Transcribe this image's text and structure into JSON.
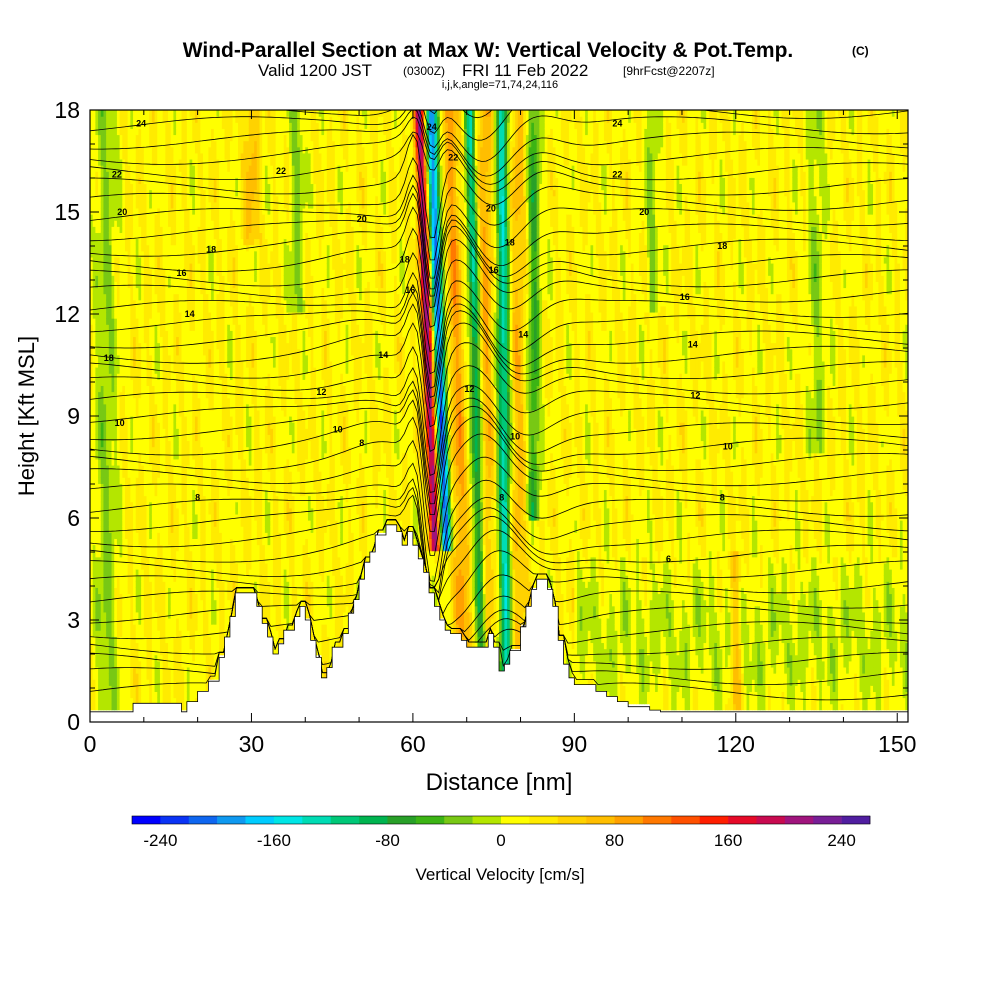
{
  "title": {
    "main": "Wind-Parallel Section at Max W: Vertical Velocity & Pot.Temp.",
    "main_tag": "(C)",
    "valid_a": "Valid 1200 JST",
    "valid_b": "(0300Z)",
    "valid_c": "FRI 11 Feb 2022",
    "valid_d": "[9hrFcst@2207z]",
    "indices": "i,j,k,angle=71,74,24,116"
  },
  "chart_data": {
    "type": "heatmap",
    "xlabel": "Distance [nm]",
    "ylabel": "Height [Kft MSL]",
    "xlim": [
      0,
      152
    ],
    "ylim": [
      0,
      18
    ],
    "xticks": [
      0,
      30,
      60,
      90,
      120,
      150
    ],
    "yticks": [
      0,
      3,
      6,
      9,
      12,
      15,
      18
    ],
    "colorbar": {
      "label": "Vertical Velocity [cm/s]",
      "min": -260,
      "max": 260,
      "step": 20,
      "tick_values": [
        -240,
        -160,
        -80,
        0,
        80,
        160,
        240
      ],
      "tick_labels": [
        "-240",
        "-160",
        "-80",
        "0",
        "80",
        "160",
        "240"
      ],
      "colors": [
        "#0000ff",
        "#0a33f5",
        "#0f66f0",
        "#0f99f0",
        "#00ccff",
        "#00e6e6",
        "#00dcb4",
        "#00c878",
        "#00b450",
        "#28a028",
        "#3cb414",
        "#78c814",
        "#b4e600",
        "#ffff00",
        "#ffeb00",
        "#ffd200",
        "#ffbe00",
        "#ffa000",
        "#ff7800",
        "#ff5000",
        "#ff1e00",
        "#e60a28",
        "#c80a50",
        "#a0147d",
        "#781e96",
        "#501ea0"
      ]
    },
    "terrain_profile": [
      [
        0,
        0.3
      ],
      [
        8,
        0.3
      ],
      [
        8,
        0.55
      ],
      [
        17,
        0.55
      ],
      [
        17,
        0.3
      ],
      [
        18,
        0.3
      ],
      [
        18,
        0.6
      ],
      [
        20,
        0.6
      ],
      [
        20,
        0.9
      ],
      [
        22,
        0.9
      ],
      [
        22,
        1.2
      ],
      [
        24,
        1.2
      ],
      [
        24,
        1.9
      ],
      [
        25,
        1.9
      ],
      [
        25,
        2.5
      ],
      [
        26,
        2.5
      ],
      [
        26,
        3.1
      ],
      [
        27,
        3.1
      ],
      [
        27,
        3.8
      ],
      [
        31,
        3.8
      ],
      [
        31,
        3.4
      ],
      [
        32,
        3.4
      ],
      [
        32,
        2.9
      ],
      [
        33,
        2.9
      ],
      [
        33,
        2.5
      ],
      [
        34,
        2.5
      ],
      [
        34,
        2.0
      ],
      [
        35,
        2.0
      ],
      [
        35,
        2.3
      ],
      [
        36,
        2.3
      ],
      [
        36,
        2.7
      ],
      [
        38,
        2.7
      ],
      [
        38,
        3.1
      ],
      [
        39,
        3.1
      ],
      [
        39,
        3.4
      ],
      [
        40,
        3.4
      ],
      [
        40,
        3.0
      ],
      [
        41,
        3.0
      ],
      [
        41,
        2.4
      ],
      [
        42,
        2.4
      ],
      [
        42,
        1.9
      ],
      [
        43,
        1.9
      ],
      [
        43,
        1.3
      ],
      [
        44,
        1.3
      ],
      [
        44,
        1.6
      ],
      [
        45,
        1.6
      ],
      [
        45,
        2.2
      ],
      [
        47,
        2.2
      ],
      [
        47,
        2.6
      ],
      [
        48,
        2.6
      ],
      [
        48,
        3.2
      ],
      [
        49,
        3.2
      ],
      [
        49,
        3.6
      ],
      [
        50,
        3.6
      ],
      [
        50,
        4.2
      ],
      [
        51,
        4.2
      ],
      [
        51,
        4.7
      ],
      [
        52,
        4.7
      ],
      [
        52,
        5.0
      ],
      [
        53,
        5.0
      ],
      [
        53,
        5.5
      ],
      [
        55,
        5.5
      ],
      [
        55,
        5.8
      ],
      [
        57,
        5.8
      ],
      [
        57,
        5.6
      ],
      [
        58,
        5.6
      ],
      [
        58,
        5.2
      ],
      [
        59,
        5.2
      ],
      [
        59,
        5.6
      ],
      [
        60,
        5.6
      ],
      [
        60,
        5.2
      ],
      [
        61,
        5.2
      ],
      [
        61,
        4.8
      ],
      [
        62,
        4.8
      ],
      [
        62,
        4.4
      ],
      [
        63,
        4.4
      ],
      [
        63,
        3.8
      ],
      [
        64,
        3.8
      ],
      [
        64,
        3.4
      ],
      [
        65,
        3.4
      ],
      [
        65,
        3.0
      ],
      [
        66,
        3.0
      ],
      [
        66,
        2.7
      ],
      [
        67,
        2.7
      ],
      [
        67,
        2.6
      ],
      [
        69,
        2.6
      ],
      [
        69,
        2.4
      ],
      [
        70,
        2.4
      ],
      [
        70,
        2.2
      ],
      [
        74,
        2.2
      ],
      [
        74,
        2.6
      ],
      [
        75,
        2.6
      ],
      [
        75,
        2.2
      ],
      [
        76,
        2.2
      ],
      [
        76,
        1.5
      ],
      [
        77,
        1.5
      ],
      [
        77,
        1.7
      ],
      [
        78,
        1.7
      ],
      [
        78,
        2.1
      ],
      [
        80,
        2.1
      ],
      [
        80,
        2.8
      ],
      [
        81,
        2.8
      ],
      [
        81,
        3.4
      ],
      [
        82,
        3.4
      ],
      [
        82,
        3.9
      ],
      [
        83,
        3.9
      ],
      [
        83,
        4.2
      ],
      [
        85,
        4.2
      ],
      [
        85,
        3.9
      ],
      [
        86,
        3.9
      ],
      [
        86,
        3.4
      ],
      [
        87,
        3.4
      ],
      [
        87,
        2.4
      ],
      [
        88,
        2.4
      ],
      [
        88,
        1.7
      ],
      [
        89,
        1.7
      ],
      [
        89,
        1.3
      ],
      [
        90,
        1.3
      ],
      [
        90,
        1.1
      ],
      [
        94,
        1.1
      ],
      [
        94,
        0.9
      ],
      [
        96,
        0.9
      ],
      [
        96,
        0.75
      ],
      [
        98,
        0.75
      ],
      [
        98,
        0.6
      ],
      [
        100,
        0.6
      ],
      [
        100,
        0.45
      ],
      [
        104,
        0.45
      ],
      [
        104,
        0.35
      ],
      [
        106,
        0.35
      ],
      [
        106,
        0.3
      ],
      [
        152,
        0.3
      ]
    ],
    "contours": {
      "variable": "Pot.Temp.",
      "units": "C",
      "labels": [
        {
          "x": 9.5,
          "y": 17.6,
          "text": "24"
        },
        {
          "x": 5.0,
          "y": 16.1,
          "text": "22"
        },
        {
          "x": 6.0,
          "y": 15.0,
          "text": "20"
        },
        {
          "x": 22.5,
          "y": 13.9,
          "text": "18"
        },
        {
          "x": 17.0,
          "y": 13.2,
          "text": "16"
        },
        {
          "x": 18.5,
          "y": 12.0,
          "text": "14"
        },
        {
          "x": 3.5,
          "y": 10.7,
          "text": "18"
        },
        {
          "x": 5.5,
          "y": 8.8,
          "text": "10"
        },
        {
          "x": 20.0,
          "y": 6.6,
          "text": "8"
        },
        {
          "x": 35.5,
          "y": 16.2,
          "text": "22"
        },
        {
          "x": 50.5,
          "y": 14.8,
          "text": "20"
        },
        {
          "x": 43.0,
          "y": 9.7,
          "text": "12"
        },
        {
          "x": 46.0,
          "y": 8.6,
          "text": "10"
        },
        {
          "x": 50.5,
          "y": 8.2,
          "text": "8"
        },
        {
          "x": 54.5,
          "y": 10.8,
          "text": "14"
        },
        {
          "x": 58.5,
          "y": 13.6,
          "text": "18"
        },
        {
          "x": 59.5,
          "y": 12.7,
          "text": "16"
        },
        {
          "x": 63.5,
          "y": 17.5,
          "text": "24"
        },
        {
          "x": 67.5,
          "y": 16.6,
          "text": "22"
        },
        {
          "x": 74.5,
          "y": 15.1,
          "text": "20"
        },
        {
          "x": 78.0,
          "y": 14.1,
          "text": "18"
        },
        {
          "x": 75.0,
          "y": 13.3,
          "text": "16"
        },
        {
          "x": 80.5,
          "y": 11.4,
          "text": "14"
        },
        {
          "x": 70.5,
          "y": 9.8,
          "text": "12"
        },
        {
          "x": 79.0,
          "y": 8.4,
          "text": "10"
        },
        {
          "x": 76.5,
          "y": 6.6,
          "text": "8"
        },
        {
          "x": 98.0,
          "y": 17.6,
          "text": "24"
        },
        {
          "x": 98.0,
          "y": 16.1,
          "text": "22"
        },
        {
          "x": 103.0,
          "y": 15.0,
          "text": "20"
        },
        {
          "x": 117.5,
          "y": 14.0,
          "text": "18"
        },
        {
          "x": 110.5,
          "y": 12.5,
          "text": "16"
        },
        {
          "x": 112.0,
          "y": 11.1,
          "text": "14"
        },
        {
          "x": 112.5,
          "y": 9.6,
          "text": "12"
        },
        {
          "x": 118.5,
          "y": 8.1,
          "text": "10"
        },
        {
          "x": 117.5,
          "y": 6.6,
          "text": "8"
        },
        {
          "x": 107.5,
          "y": 4.8,
          "text": "6"
        }
      ]
    }
  }
}
